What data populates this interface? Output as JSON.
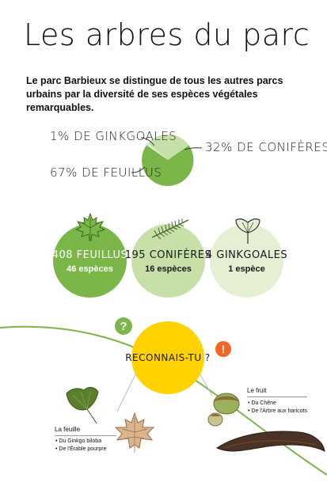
{
  "title": "Les arbres du parc",
  "intro": "Le parc Barbieux se distingue de tous les autres parcs urbains par la diversité de ses espèces végétales remarquables.",
  "pie": {
    "ginkgo_label": "1% DE GINKGOALES",
    "conifer_label": "32% DE CONIFÈRES",
    "leafy_label": "67% DE FEUILLUS",
    "shares": {
      "feuillus": 67,
      "coniferes": 32,
      "ginkgoales": 1
    },
    "colors": {
      "feuillus": "#7ab648",
      "coniferes": "#c5e0a9",
      "ginkgoales": "#e3efd2"
    }
  },
  "circles": [
    {
      "main": "408 FEUILLUS",
      "sub": "46 espèces",
      "color": "#7ab648",
      "text_color": "#ffffff"
    },
    {
      "main": "195 CONIFÈRES",
      "sub": "16 espèces",
      "color": "#c6e0a8",
      "text_color": "#1a1a1a"
    },
    {
      "main": "4 GINKGOALES",
      "sub": "1 espèce",
      "color": "#e4efd4",
      "text_color": "#1a1a1a"
    }
  ],
  "question": {
    "label": "RECONNAIS-TU ?",
    "color": "#ffd200",
    "bubble_left_glyph": "?",
    "bubble_right_glyph": "!",
    "bubble_left_color": "#7ab648",
    "bubble_right_color": "#f26522"
  },
  "leaf_block": {
    "title": "La feuille",
    "items": [
      "• Du Ginkgo biloba",
      "• De l'Érable pourpre"
    ]
  },
  "fruit_block": {
    "title": "Le fruit",
    "items": [
      "• Du Chêne",
      "• De l'Arbre aux haricots"
    ]
  },
  "icons": [
    "maple-leaf-icon",
    "conifer-twig-icon",
    "ginkgo-leaf-icon",
    "ginkgo-leaf-photo",
    "maple-leaf-photo",
    "acorn-photo",
    "bean-pod-photo"
  ]
}
